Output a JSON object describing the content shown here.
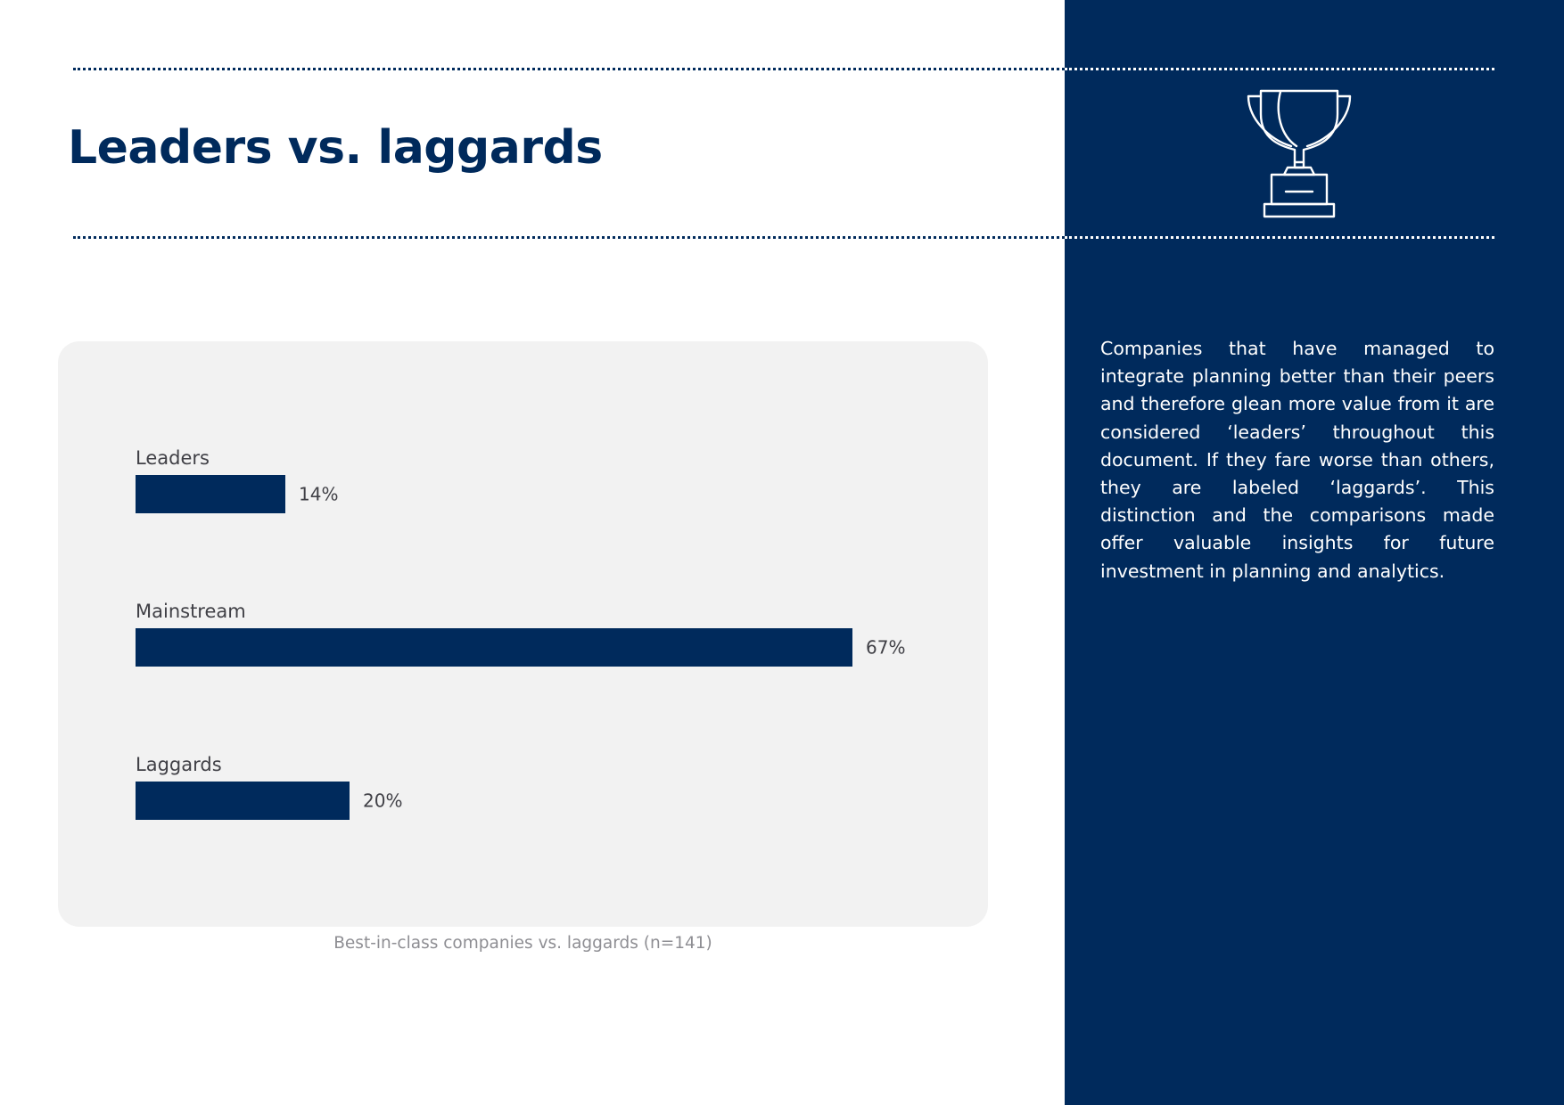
{
  "page": {
    "title": "Leaders vs. laggards",
    "side_text": "Companies that have managed to integrate planning better than their peers and there­fore glean more value from it are consid­ered ‘leaders’ throughout this document. If they fare worse than others, they are labeled ‘laggards’. This distinction and the compari­sons made offer valuable insights for future investment in planning and analytics.",
    "caption": "Best-in-class companies vs. laggards (n=141)",
    "icon": "trophy-icon"
  },
  "colors": {
    "brand": "#002a5c",
    "card": "#f2f2f2",
    "text": "#404046",
    "caption": "#8e8e93"
  },
  "chart_data": {
    "type": "bar",
    "orientation": "horizontal",
    "categories": [
      "Leaders",
      "Mainstream",
      "Laggards"
    ],
    "values": [
      14,
      67,
      20
    ],
    "value_labels": [
      "14%",
      "67%",
      "20%"
    ],
    "unit": "%",
    "xlim": [
      0,
      100
    ],
    "grid": false,
    "legend": "none",
    "title": "",
    "xlabel": "",
    "ylabel": ""
  }
}
